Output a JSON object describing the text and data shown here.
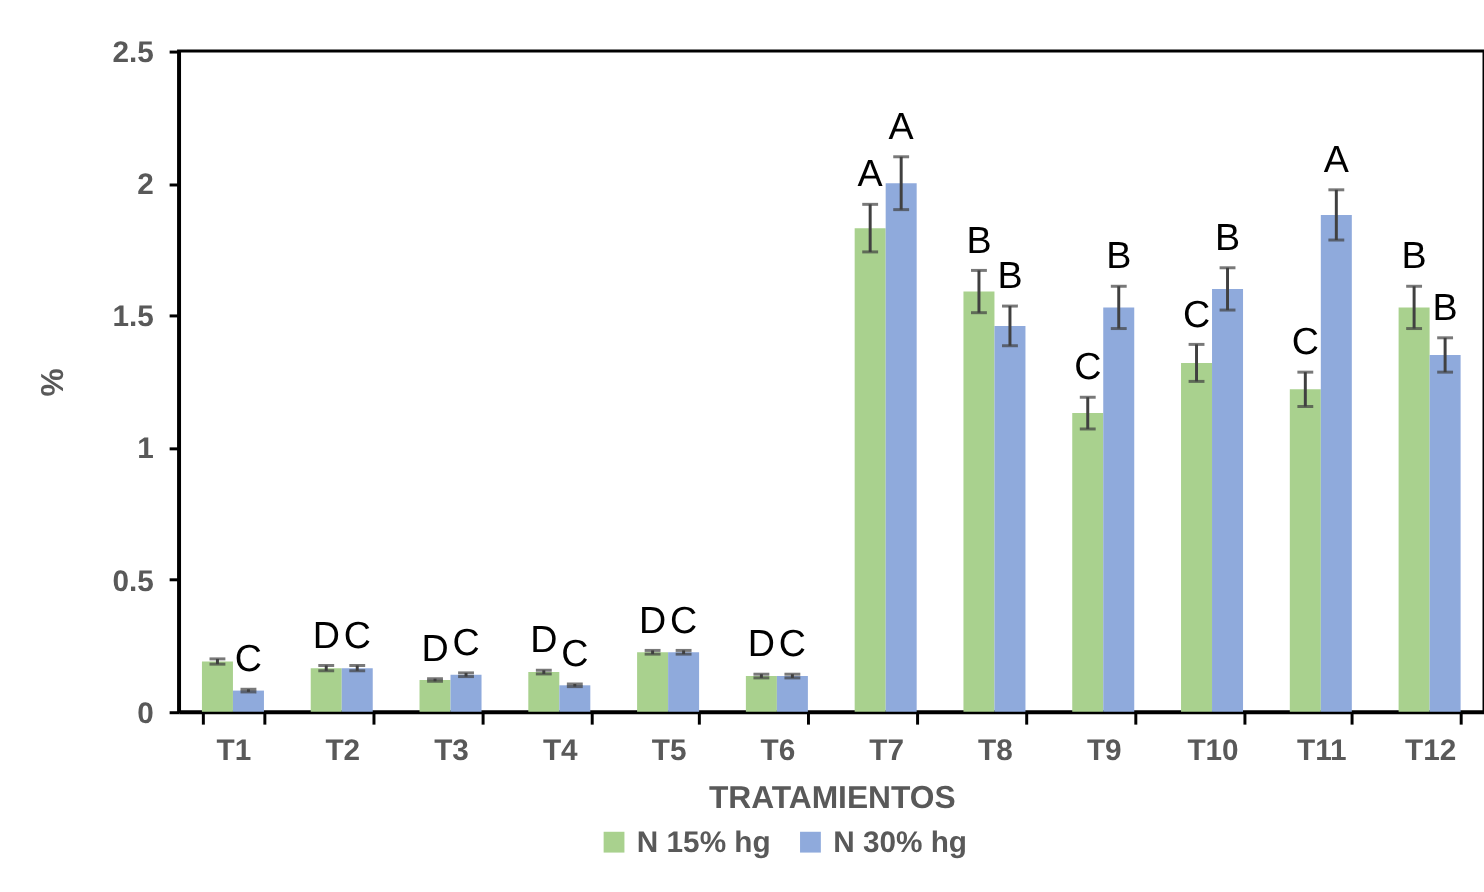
{
  "chart_data": {
    "type": "bar",
    "xlabel": "TRATAMIENTOS",
    "ylabel": "%",
    "categories": [
      "T1",
      "T2",
      "T3",
      "T4",
      "T5",
      "T6",
      "T7",
      "T8",
      "T9",
      "T10",
      "T11",
      "T12"
    ],
    "series": [
      {
        "name": "N 15% hg",
        "color": "#a9d18e",
        "values": [
          0.19,
          0.165,
          0.12,
          0.15,
          0.225,
          0.135,
          1.83,
          1.59,
          1.13,
          1.32,
          1.22,
          1.53
        ],
        "errors": [
          0.01,
          0.01,
          0.005,
          0.007,
          0.007,
          0.007,
          0.09,
          0.08,
          0.06,
          0.07,
          0.065,
          0.08
        ],
        "value_labels": [
          null,
          "D",
          "D",
          "D",
          "D",
          "D",
          "A",
          "B",
          "C",
          "C",
          "C",
          "B"
        ]
      },
      {
        "name": "N 30% hg",
        "color": "#8faadc",
        "values": [
          0.08,
          0.165,
          0.14,
          0.1,
          0.225,
          0.135,
          2.0,
          1.46,
          1.53,
          1.6,
          1.88,
          1.35
        ],
        "errors": [
          0.005,
          0.01,
          0.007,
          0.005,
          0.007,
          0.007,
          0.1,
          0.075,
          0.08,
          0.08,
          0.095,
          0.065
        ],
        "value_labels": [
          "C",
          "C",
          "C",
          "C",
          "C",
          "C",
          "A",
          "B",
          "B",
          "B",
          "A",
          "B"
        ]
      }
    ],
    "ylim": [
      0,
      2.5
    ],
    "yticks": [
      0,
      0.5,
      1,
      1.5,
      2,
      2.5
    ],
    "legend": "bottom"
  }
}
